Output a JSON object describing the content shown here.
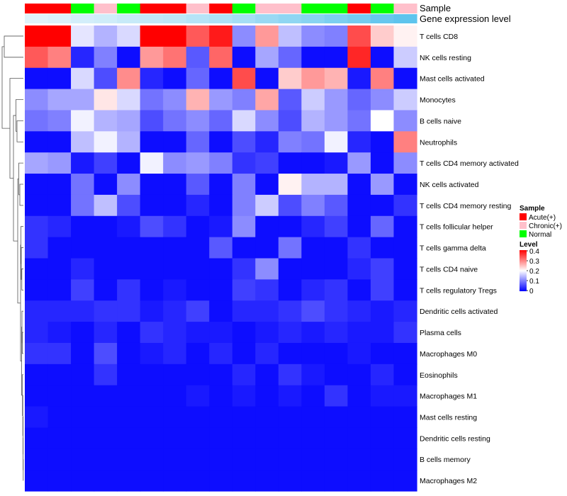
{
  "chart_data": {
    "type": "heatmap",
    "annotation_tracks": [
      {
        "name": "Sample",
        "values": [
          "Acute(+)",
          "Acute(+)",
          "Normal",
          "Chronic(+)",
          "Normal",
          "Acute(+)",
          "Acute(+)",
          "Chronic(+)",
          "Acute(+)",
          "Normal",
          "Chronic(+)",
          "Chronic(+)",
          "Normal",
          "Normal",
          "Acute(+)",
          "Normal",
          "Chronic(+)"
        ]
      },
      {
        "name": "Gene expression level",
        "values": [
          0.02,
          0.03,
          0.05,
          0.06,
          0.08,
          0.09,
          0.1,
          0.12,
          0.14,
          0.16,
          0.19,
          0.21,
          0.23,
          0.26,
          0.28,
          0.31,
          0.33
        ]
      }
    ],
    "rows": [
      "T cells CD8",
      "NK cells resting",
      "Mast cells activated",
      "Monocytes",
      "B cells naive",
      "Neutrophils",
      "T cells CD4 memory activated",
      "NK cells activated",
      "T cells CD4 memory resting",
      "T cells follicular helper",
      "T cells gamma delta",
      "T cells CD4 naive",
      "T cells regulatory  Tregs",
      "Dendritic cells activated",
      "Plasma cells",
      "Macrophages M0",
      "Eosinophils",
      "Macrophages M1",
      "Mast cells resting",
      "Dendritic cells resting",
      "B cells memory",
      "Macrophages M2"
    ],
    "values": [
      [
        0.4,
        0.4,
        0.18,
        0.14,
        0.17,
        0.4,
        0.4,
        0.33,
        0.38,
        0.11,
        0.28,
        0.15,
        0.11,
        0.1,
        0.34,
        0.24,
        0.21
      ],
      [
        0.33,
        0.3,
        0.03,
        0.1,
        0.01,
        0.28,
        0.31,
        0.07,
        0.32,
        0.01,
        0.13,
        0.08,
        0.01,
        0.01,
        0.37,
        0.01,
        0.16
      ],
      [
        0.01,
        0.01,
        0.17,
        0.06,
        0.29,
        0.03,
        0.01,
        0.08,
        0.01,
        0.34,
        0.01,
        0.24,
        0.28,
        0.26,
        0.02,
        0.3,
        0.01
      ],
      [
        0.11,
        0.13,
        0.13,
        0.22,
        0.17,
        0.09,
        0.11,
        0.26,
        0.12,
        0.1,
        0.27,
        0.07,
        0.16,
        0.12,
        0.08,
        0.11,
        0.16
      ],
      [
        0.09,
        0.1,
        0.19,
        0.14,
        0.13,
        0.06,
        0.09,
        0.11,
        0.08,
        0.17,
        0.11,
        0.06,
        0.14,
        0.12,
        0.09,
        0.2,
        0.11
      ],
      [
        0.01,
        0.01,
        0.15,
        0.19,
        0.14,
        0.01,
        0.01,
        0.08,
        0.01,
        0.06,
        0.03,
        0.1,
        0.09,
        0.19,
        0.03,
        0.01,
        0.3
      ],
      [
        0.13,
        0.12,
        0.02,
        0.05,
        0.01,
        0.19,
        0.11,
        0.12,
        0.1,
        0.04,
        0.05,
        0.01,
        0.01,
        0.02,
        0.12,
        0.01,
        0.11
      ],
      [
        0.01,
        0.01,
        0.09,
        0.01,
        0.11,
        0.01,
        0.01,
        0.07,
        0.01,
        0.1,
        0.01,
        0.21,
        0.14,
        0.14,
        0.01,
        0.12,
        0.01
      ],
      [
        0.01,
        0.01,
        0.09,
        0.15,
        0.06,
        0.01,
        0.01,
        0.03,
        0.01,
        0.1,
        0.16,
        0.06,
        0.1,
        0.07,
        0.01,
        0.01,
        0.04
      ],
      [
        0.04,
        0.03,
        0.01,
        0.01,
        0.02,
        0.06,
        0.04,
        0.01,
        0.02,
        0.11,
        0.01,
        0.01,
        0.03,
        0.05,
        0.01,
        0.08,
        0.01
      ],
      [
        0.04,
        0.01,
        0.01,
        0.01,
        0.01,
        0.01,
        0.01,
        0.01,
        0.07,
        0.01,
        0.01,
        0.09,
        0.01,
        0.01,
        0.04,
        0.01,
        0.01
      ],
      [
        0.01,
        0.01,
        0.03,
        0.01,
        0.01,
        0.01,
        0.01,
        0.01,
        0.01,
        0.04,
        0.11,
        0.01,
        0.01,
        0.01,
        0.03,
        0.05,
        0.01
      ],
      [
        0.01,
        0.01,
        0.05,
        0.01,
        0.04,
        0.01,
        0.02,
        0.01,
        0.01,
        0.05,
        0.04,
        0.01,
        0.03,
        0.04,
        0.01,
        0.05,
        0.01
      ],
      [
        0.03,
        0.03,
        0.03,
        0.04,
        0.04,
        0.02,
        0.03,
        0.05,
        0.01,
        0.03,
        0.03,
        0.04,
        0.06,
        0.04,
        0.03,
        0.02,
        0.03
      ],
      [
        0.03,
        0.02,
        0.01,
        0.03,
        0.01,
        0.04,
        0.03,
        0.02,
        0.02,
        0.01,
        0.02,
        0.03,
        0.02,
        0.03,
        0.02,
        0.02,
        0.04
      ],
      [
        0.04,
        0.04,
        0.01,
        0.06,
        0.01,
        0.02,
        0.03,
        0.01,
        0.03,
        0.01,
        0.03,
        0.01,
        0.01,
        0.01,
        0.02,
        0.01,
        0.01
      ],
      [
        0.01,
        0.01,
        0.01,
        0.04,
        0.01,
        0.01,
        0.01,
        0.01,
        0.01,
        0.03,
        0.01,
        0.04,
        0.02,
        0.01,
        0.01,
        0.03,
        0.01
      ],
      [
        0.01,
        0.01,
        0.01,
        0.01,
        0.01,
        0.01,
        0.01,
        0.02,
        0.01,
        0.02,
        0.01,
        0.02,
        0.01,
        0.04,
        0.01,
        0.02,
        0.02
      ],
      [
        0.02,
        0.01,
        0.01,
        0.01,
        0.01,
        0.01,
        0.01,
        0.01,
        0.01,
        0.01,
        0.01,
        0.01,
        0.01,
        0.01,
        0.01,
        0.01,
        0.01
      ],
      [
        0.01,
        0.01,
        0.01,
        0.01,
        0.01,
        0.01,
        0.01,
        0.01,
        0.01,
        0.01,
        0.01,
        0.01,
        0.01,
        0.01,
        0.01,
        0.01,
        0.01
      ],
      [
        0.01,
        0.01,
        0.01,
        0.01,
        0.01,
        0.01,
        0.01,
        0.01,
        0.01,
        0.01,
        0.01,
        0.01,
        0.01,
        0.01,
        0.01,
        0.01,
        0.01
      ],
      [
        0.01,
        0.01,
        0.01,
        0.01,
        0.01,
        0.01,
        0.01,
        0.01,
        0.01,
        0.01,
        0.01,
        0.01,
        0.01,
        0.01,
        0.01,
        0.01,
        0.01
      ]
    ],
    "color_scale": {
      "min": 0,
      "mid": 0.2,
      "max": 0.4,
      "low_color": "#0000ff",
      "mid_color": "#ffffff",
      "high_color": "#ff0000"
    },
    "track_colors": {
      "Sample": {
        "Acute(+)": "#ff0000",
        "Chronic(+)": "#ffc0cb",
        "Normal": "#00ff00"
      },
      "Gene expression level": {
        "low": "#e8f6fc",
        "high": "#56c1ec",
        "range": [
          0,
          0.35
        ]
      }
    },
    "legend": {
      "sample_title": "Sample",
      "sample_items": [
        "Acute(+)",
        "Chronic(+)",
        "Normal"
      ],
      "level_title": "Level",
      "level_ticks": [
        "0.4",
        "0.3",
        "0.2",
        "0.1",
        "0"
      ],
      "level_tick_values": [
        0.4,
        0.3,
        0.2,
        0.1,
        0
      ]
    },
    "dendrogram": "row clustering (hierarchical)",
    "dendrogram_merges": [
      [
        "T cells CD8",
        "NK cells resting",
        2.7
      ],
      [
        "Macrophages M2",
        "B cells memory",
        0.02
      ],
      [
        "Dendritic cells resting",
        "Macrophages M2|B cells memory",
        0.04
      ],
      [
        "Mast cells resting",
        "Dendritic cells resting|Macrophages M2|B cells memory",
        0.05
      ],
      [
        "Macrophages M1",
        "Mast cells resting|Dendritic cells resting|Macrophages M2|B cells memory",
        0.08
      ],
      [
        "Eosinophils",
        "Macrophages M1|Mast cells resting|Dendritic cells resting|Macrophages M2|B cells memory",
        0.13
      ],
      [
        "Plasma cells",
        "Macrophages M0",
        0.15
      ],
      [
        "Dendritic cells activated",
        "Plasma cells|Macrophages M0",
        0.2
      ],
      [
        "Dendritic cells activated|Plasma cells|Macrophages M0",
        "Eosinophils|Macrophages M1|Mast cells resting|Dendritic cells resting|Macrophages M2|B cells memory",
        0.25
      ],
      [
        "T cells CD4 naive",
        "T cells regulatory  Tregs",
        0.22
      ],
      [
        "T cells gamma delta",
        "T cells CD4 naive|T cells regulatory  Tregs",
        0.3
      ],
      [
        "T cells follicular helper",
        "T cells gamma delta|T cells CD4 naive|T cells regulatory  Tregs",
        0.35
      ],
      [
        "T cells follicular helper|T cells gamma delta|T cells CD4 naive|T cells regulatory  Tregs",
        "Dendritic cells activated|Plasma cells|Macrophages M0|Eosinophils|Macrophages M1|Mast cells resting|Dendritic cells resting|Macrophages M2|B cells memory",
        0.4
      ],
      [
        "NK cells activated",
        "T cells CD4 memory resting",
        0.5
      ],
      [
        "T cells CD4 memory activated",
        "NK cells activated|T cells CD4 memory resting",
        0.65
      ],
      [
        "T cells CD4 memory activated|NK cells activated|T cells CD4 memory resting",
        "T cells follicular helper|T cells gamma delta|T cells CD4 naive|T cells regulatory  Tregs|Dendritic cells activated|Plasma cells|Macrophages M0|Eosinophils|Macrophages M1|Mast cells resting|Dendritic cells resting|Macrophages M2|B cells memory",
        0.8
      ],
      [
        "B cells naive",
        "Neutrophils",
        0.9
      ],
      [
        "Monocytes",
        "B cells naive|Neutrophils",
        1.05
      ],
      [
        "Monocytes|B cells naive|Neutrophils",
        "T cells CD4 memory activated|NK cells activated|T cells CD4 memory resting|T cells follicular helper|T cells gamma delta|T cells CD4 naive|T cells regulatory  Tregs|Dendritic cells activated|Plasma cells|Macrophages M0|Eosinophils|Macrophages M1|Mast cells resting|Dendritic cells resting|Macrophages M2|B cells memory",
        1.4
      ],
      [
        "Mast cells activated",
        "Monocytes|B cells naive|Neutrophils|T cells CD4 memory activated|NK cells activated|T cells CD4 memory resting|T cells follicular helper|T cells gamma delta|T cells CD4 naive|T cells regulatory  Tregs|Dendritic cells activated|Plasma cells|Macrophages M0|Eosinophils|Macrophages M1|Mast cells resting|Dendritic cells resting|Macrophages M2|B cells memory",
        1.9
      ],
      [
        "T cells CD8|NK cells resting",
        "Mast cells activated|Monocytes|B cells naive|Neutrophils|T cells CD4 memory activated|NK cells activated|T cells CD4 memory resting|T cells follicular helper|T cells gamma delta|T cells CD4 naive|T cells regulatory  Tregs|Dendritic cells activated|Plasma cells|Macrophages M0|Eosinophils|Macrophages M1|Mast cells resting|Dendritic cells resting|Macrophages M2|B cells memory",
        3.0
      ]
    ]
  }
}
